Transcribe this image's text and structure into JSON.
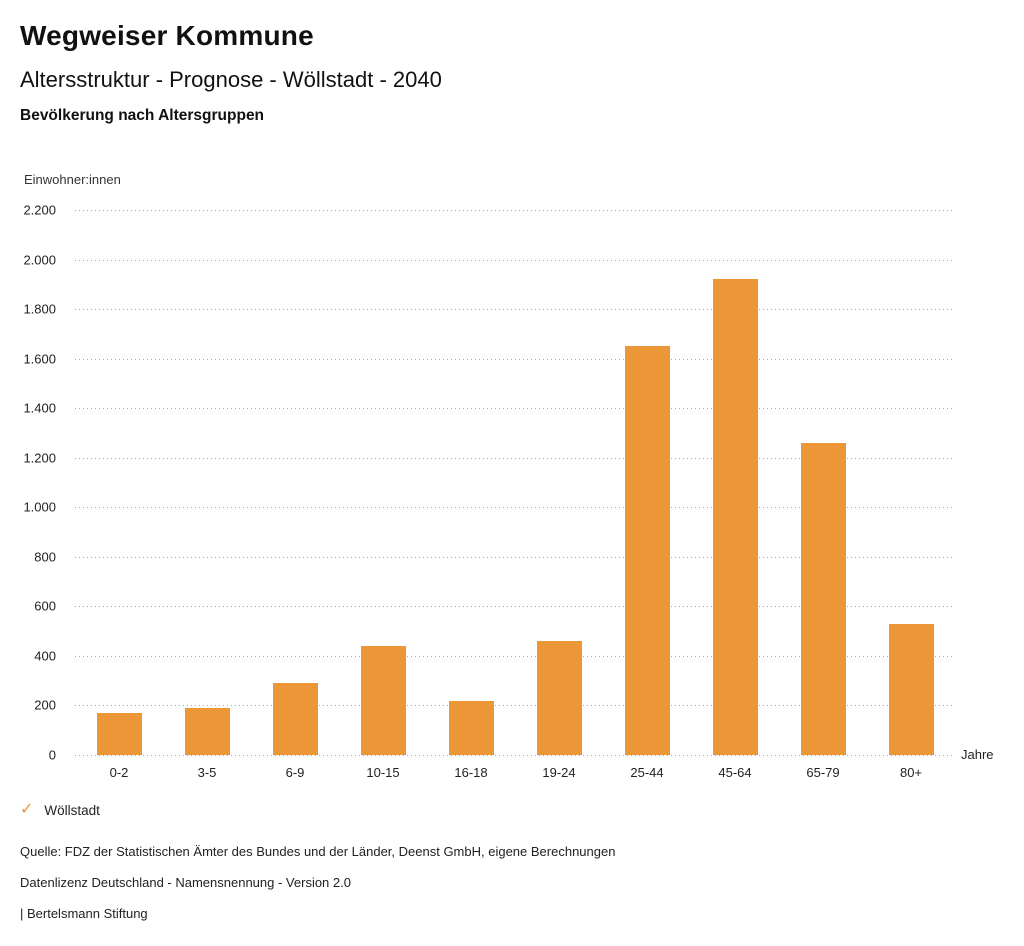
{
  "header": {
    "title": "Wegweiser Kommune",
    "subtitle": "Altersstruktur - Prognose - Wöllstadt - 2040",
    "chart_heading": "Bevölkerung nach Altersgruppen"
  },
  "chart_data": {
    "type": "bar",
    "title": "Bevölkerung nach Altersgruppen",
    "unit_label": "Einwohner:innen",
    "xlabel": "Jahre",
    "categories": [
      "0-2",
      "3-5",
      "6-9",
      "10-15",
      "16-18",
      "19-24",
      "25-44",
      "45-64",
      "65-79",
      "80+"
    ],
    "series": [
      {
        "name": "Wöllstadt",
        "values": [
          170,
          190,
          290,
          440,
          220,
          460,
          1650,
          1920,
          1260,
          530
        ]
      }
    ],
    "ylim": [
      0,
      2200
    ],
    "ytick_step": 200,
    "ytick_labels_top_down": [
      "2.200",
      "2.000",
      "1.800",
      "1.600",
      "1.400",
      "1.200",
      "1.000",
      "800",
      "600",
      "400",
      "200",
      "0"
    ],
    "grid": "dotted-horizontal",
    "legend_position": "bottom-left",
    "bar_color": "#EC9737"
  },
  "legend": {
    "check_icon": "✓",
    "label": "Wöllstadt",
    "color": "#EC9737"
  },
  "footer": {
    "source": "Quelle: FDZ der Statistischen Ämter des Bundes und der Länder, Deenst GmbH, eigene Berechnungen",
    "license": "Datenlizenz Deutschland - Namensnennung - Version 2.0",
    "attribution": "| Bertelsmann Stiftung"
  }
}
